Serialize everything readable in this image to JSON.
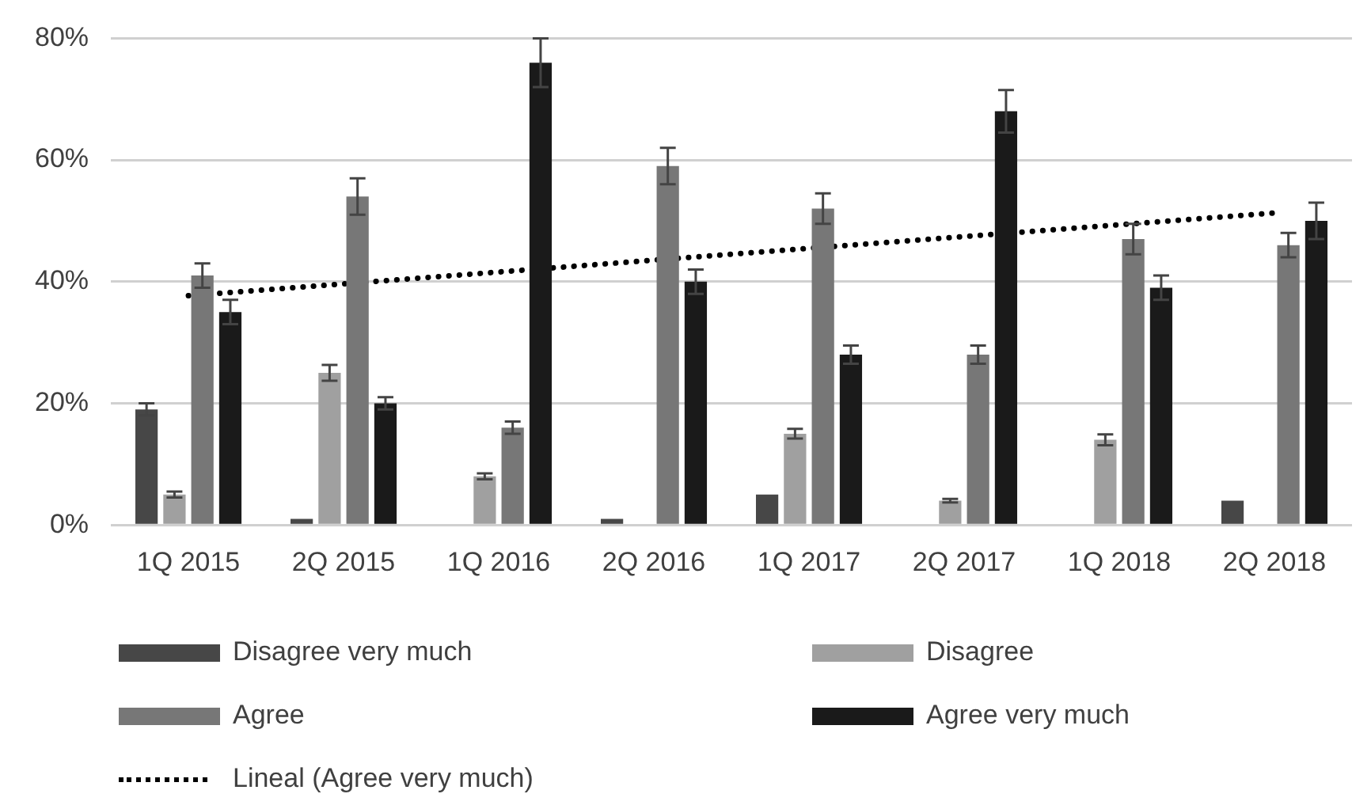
{
  "chart_data": {
    "type": "bar",
    "categories": [
      "1Q 2015",
      "2Q 2015",
      "1Q 2016",
      "2Q 2016",
      "1Q 2017",
      "2Q 2017",
      "1Q 2018",
      "2Q 2018"
    ],
    "series": [
      {
        "name": "Disagree very much",
        "color": "#474747",
        "values": [
          19,
          1,
          0,
          1,
          5,
          0,
          0,
          4
        ],
        "errors": [
          1,
          null,
          null,
          null,
          null,
          null,
          null,
          null
        ]
      },
      {
        "name": "Disagree",
        "color": "#a0a0a0",
        "values": [
          5,
          25,
          8,
          0,
          15,
          4,
          14,
          0
        ],
        "errors": [
          0.5,
          1.3,
          0.5,
          null,
          0.8,
          0.3,
          0.9,
          null
        ]
      },
      {
        "name": "Agree",
        "color": "#777777",
        "values": [
          41,
          54,
          16,
          59,
          52,
          28,
          47,
          46
        ],
        "errors": [
          2,
          3,
          1,
          3,
          2.5,
          1.5,
          2.5,
          2
        ]
      },
      {
        "name": "Agree very much",
        "color": "#1a1a1a",
        "values": [
          35,
          20,
          76,
          40,
          28,
          68,
          39,
          50
        ],
        "errors": [
          2,
          1,
          4,
          2,
          1.5,
          3.5,
          2,
          3
        ]
      },
      {
        "name": "Lineal (Agree very much)",
        "type": "line",
        "color": "#000000",
        "line_style": "dotted",
        "x": [
          "1Q 2015",
          "2Q 2018"
        ],
        "values": [
          37.7,
          51.3
        ]
      }
    ],
    "ylim": [
      0,
      80
    ],
    "yticks": [
      {
        "value": 0,
        "label": "0%"
      },
      {
        "value": 20,
        "label": "20%"
      },
      {
        "value": 40,
        "label": "40%"
      },
      {
        "value": 60,
        "label": "60%"
      },
      {
        "value": 80,
        "label": "80%"
      }
    ],
    "grid": "y",
    "legend": "bottom"
  }
}
